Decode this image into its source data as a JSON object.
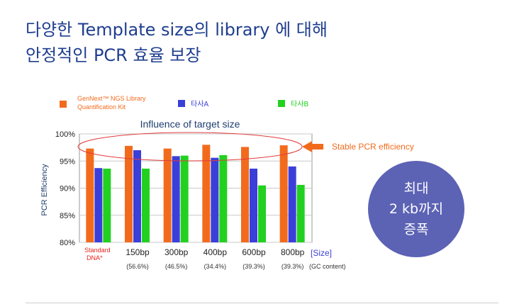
{
  "headline": {
    "line1": "다양한 Template size의 library 에 대해",
    "line2": "안정적인 PCR 효율 보장"
  },
  "badge": {
    "line1": "최대",
    "line2": "2 kb까지",
    "line3": "증폭"
  },
  "chart_data": {
    "type": "bar",
    "title": "Influence of target size",
    "ylabel": "PCR Efficiency",
    "ylim": [
      80,
      100
    ],
    "yticks": [
      "100%",
      "95%",
      "90%",
      "85%",
      "80%"
    ],
    "categories": [
      "Standard DNA*",
      "150bp",
      "300bp",
      "400bp",
      "600bp",
      "800bp"
    ],
    "gc_content": [
      "",
      "(56.6%)",
      "(46.5%)",
      "(34.4%)",
      "(39.3%)",
      "(39.3%)"
    ],
    "x_axis_label": "[Size]",
    "gc_label": "(GC content)",
    "series": [
      {
        "name": "GenNext™ NGS Library Quantification Kit",
        "color": "#f26b1d",
        "values": [
          97.3,
          97.8,
          97.3,
          98.0,
          97.6,
          97.9
        ]
      },
      {
        "name": "타사A",
        "color": "#3b3fd9",
        "values": [
          93.7,
          97.0,
          95.9,
          95.6,
          93.6,
          94.0
        ]
      },
      {
        "name": "타사B",
        "color": "#22d120",
        "values": [
          93.6,
          93.6,
          96.0,
          96.1,
          90.5,
          90.6
        ]
      }
    ],
    "annotation": "Stable PCR efficiency",
    "grid": true,
    "legend_position": "top"
  }
}
